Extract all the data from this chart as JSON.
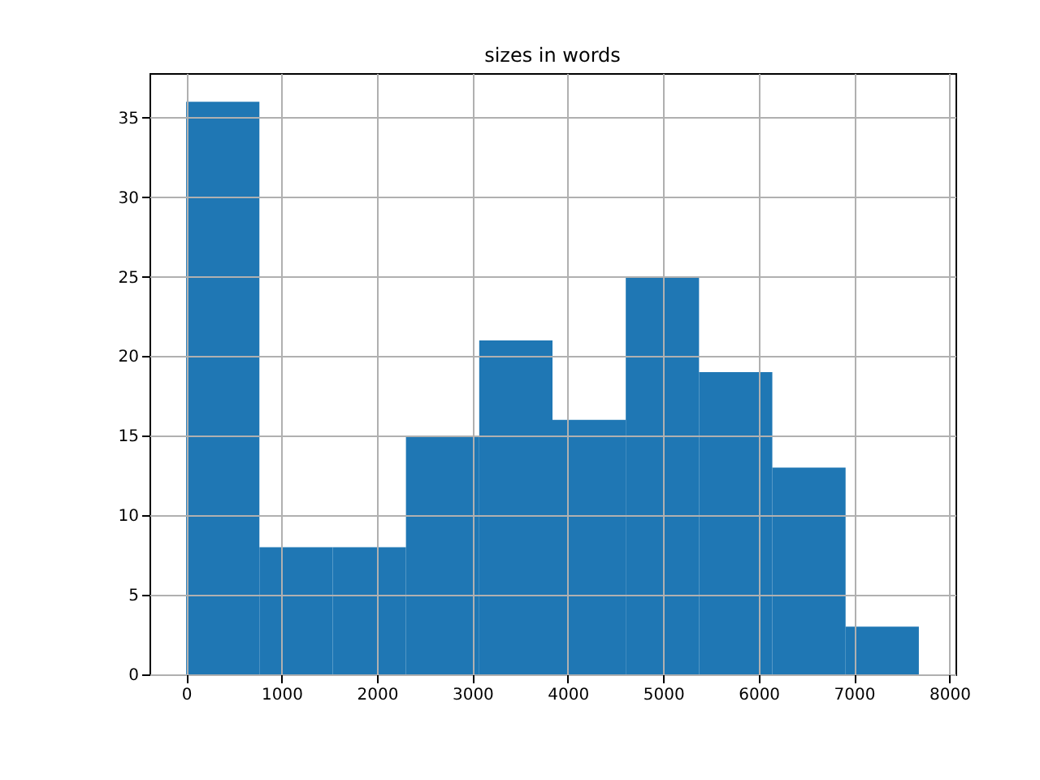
{
  "chart_data": {
    "type": "histogram",
    "title": "sizes in words",
    "bins": [
      0,
      768,
      1536,
      2304,
      3072,
      3840,
      4608,
      5376,
      6144,
      6912,
      7680
    ],
    "values": [
      36,
      8,
      8,
      15,
      21,
      16,
      25,
      19,
      13,
      3
    ],
    "color": "#1f77b4",
    "xlim": [
      -384,
      8064
    ],
    "xticks": [
      0,
      1000,
      2000,
      3000,
      4000,
      5000,
      6000,
      7000,
      8000
    ],
    "ylim": [
      0,
      37.8
    ],
    "yticks": [
      0,
      5,
      10,
      15,
      20,
      25,
      30,
      35
    ],
    "grid": true
  }
}
